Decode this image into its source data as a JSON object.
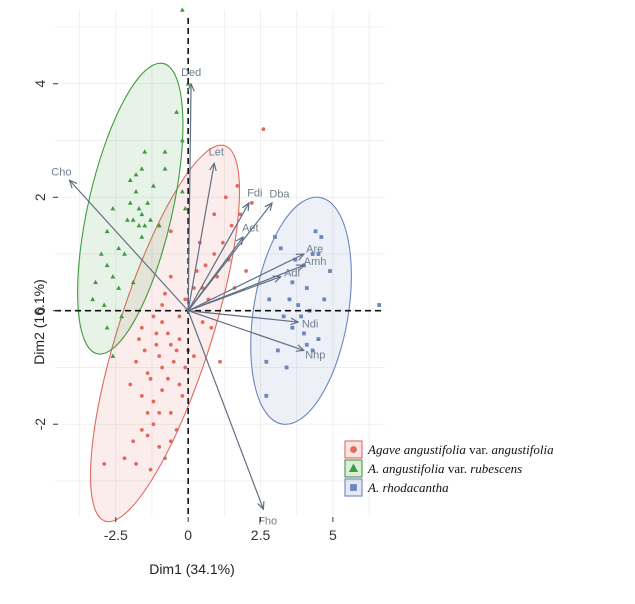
{
  "chart_data": {
    "type": "scatter",
    "subtype": "pca-biplot",
    "title": "",
    "xlabel": "Dim1 (34.1%)",
    "ylabel": "Dim2 (16.1%)",
    "xlim": [
      -4.6,
      6.8
    ],
    "ylim": [
      -3.6,
      5.3
    ],
    "x_ticks": [
      -2.5,
      0,
      2.5,
      5
    ],
    "x_tick_labels": [
      "-2.5",
      "0",
      "2.5",
      "5"
    ],
    "y_ticks": [
      -2,
      0,
      2,
      4
    ],
    "y_tick_labels": [
      "-2",
      "0",
      "2",
      "4"
    ],
    "grid": true,
    "legend_position": "bottom-right",
    "series": [
      {
        "legend_parts": [
          {
            "text": "Agave angustifolia",
            "italic": true
          },
          {
            "text": " var. ",
            "italic": false
          },
          {
            "text": "angustifolia",
            "italic": true
          }
        ],
        "marker": "circle",
        "color": "#e2695f",
        "ellipse": {
          "cx": -0.8,
          "cy": -0.4,
          "angle": 58,
          "a": 3.9,
          "b": 1.2
        },
        "points": [
          [
            -0.6,
            1.4
          ],
          [
            -0.8,
            0.3
          ],
          [
            -0.9,
            0.1
          ],
          [
            -1.6,
            -0.3
          ],
          [
            -1.7,
            -0.5
          ],
          [
            -1.1,
            -0.6
          ],
          [
            -0.6,
            -0.6
          ],
          [
            -0.4,
            -0.7
          ],
          [
            -1.0,
            -0.8
          ],
          [
            -0.9,
            -1.0
          ],
          [
            -1.4,
            -1.1
          ],
          [
            -1.3,
            -1.2
          ],
          [
            -0.7,
            -1.2
          ],
          [
            -0.3,
            -1.3
          ],
          [
            -0.9,
            -1.4
          ],
          [
            -1.6,
            -1.5
          ],
          [
            -1.4,
            -1.8
          ],
          [
            -0.6,
            -1.8
          ],
          [
            -1.2,
            -2.0
          ],
          [
            -1.4,
            -2.2
          ],
          [
            -1.9,
            -2.3
          ],
          [
            -1.0,
            -2.4
          ],
          [
            -0.8,
            -2.6
          ],
          [
            -1.8,
            -2.7
          ],
          [
            -2.2,
            -2.6
          ],
          [
            -1.3,
            -2.8
          ],
          [
            -2.9,
            -2.7
          ],
          [
            -0.9,
            -0.2
          ],
          [
            -0.7,
            -0.4
          ],
          [
            -1.1,
            -0.4
          ],
          [
            -0.5,
            -0.9
          ],
          [
            -0.1,
            -1.0
          ],
          [
            -0.3,
            -0.5
          ],
          [
            0.0,
            -0.7
          ],
          [
            -0.2,
            -1.5
          ],
          [
            -1.8,
            -0.9
          ],
          [
            -2.0,
            -1.3
          ],
          [
            -0.4,
            -2.1
          ],
          [
            -1.5,
            -0.7
          ],
          [
            -1.2,
            -1.6
          ],
          [
            0.2,
            -0.8
          ],
          [
            0.3,
            0.7
          ],
          [
            0.5,
            0.4
          ],
          [
            0.6,
            0.8
          ],
          [
            0.9,
            1.0
          ],
          [
            1.2,
            1.2
          ],
          [
            1.5,
            1.5
          ],
          [
            1.4,
            0.9
          ],
          [
            1.0,
            0.6
          ],
          [
            0.7,
            0.2
          ],
          [
            1.8,
            1.7
          ],
          [
            2.0,
            0.7
          ],
          [
            0.4,
            1.2
          ],
          [
            0.9,
            1.7
          ],
          [
            1.3,
            2.0
          ],
          [
            1.7,
            2.2
          ],
          [
            1.6,
            0.4
          ],
          [
            0.8,
            -0.3
          ],
          [
            1.1,
            -0.9
          ],
          [
            0.5,
            -0.2
          ],
          [
            2.2,
            1.9
          ],
          [
            2.6,
            3.2
          ],
          [
            -0.3,
            -0.1
          ],
          [
            -0.1,
            0.2
          ],
          [
            0.2,
            0.4
          ],
          [
            -0.6,
            0.6
          ],
          [
            -1.0,
            -1.8
          ],
          [
            -0.6,
            -2.3
          ],
          [
            -1.6,
            -2.1
          ],
          [
            -1.2,
            -0.1
          ]
        ]
      },
      {
        "legend_parts": [
          {
            "text": "A. angustifolia",
            "italic": true
          },
          {
            "text": " var. ",
            "italic": false
          },
          {
            "text": "rubescens",
            "italic": true
          }
        ],
        "marker": "triangle",
        "color": "#3f9b3f",
        "ellipse": {
          "cx": -2.0,
          "cy": 1.8,
          "angle": 66,
          "a": 2.8,
          "b": 1.2
        },
        "points": [
          [
            -0.2,
            5.3
          ],
          [
            0.0,
            4.0
          ],
          [
            -0.2,
            3.0
          ],
          [
            -0.4,
            3.5
          ],
          [
            -0.8,
            2.8
          ],
          [
            -0.8,
            2.5
          ],
          [
            -1.5,
            2.8
          ],
          [
            -1.6,
            2.5
          ],
          [
            -1.8,
            2.1
          ],
          [
            -2.0,
            1.9
          ],
          [
            -1.8,
            2.4
          ],
          [
            -1.6,
            1.7
          ],
          [
            -1.9,
            1.6
          ],
          [
            -1.5,
            1.5
          ],
          [
            -1.3,
            1.6
          ],
          [
            -2.1,
            1.6
          ],
          [
            -1.7,
            1.8
          ],
          [
            -2.6,
            1.8
          ],
          [
            -2.8,
            1.4
          ],
          [
            -2.4,
            1.1
          ],
          [
            -3.0,
            1.0
          ],
          [
            -2.8,
            0.8
          ],
          [
            -2.6,
            0.6
          ],
          [
            -2.4,
            0.4
          ],
          [
            -3.2,
            0.5
          ],
          [
            -3.3,
            0.2
          ],
          [
            -2.9,
            0.1
          ],
          [
            -2.3,
            -0.1
          ],
          [
            -2.8,
            -0.3
          ],
          [
            -2.6,
            -0.8
          ],
          [
            -1.4,
            1.9
          ],
          [
            -1.0,
            1.5
          ],
          [
            -1.2,
            2.2
          ],
          [
            -0.2,
            2.1
          ],
          [
            -0.1,
            1.8
          ],
          [
            -1.6,
            1.3
          ],
          [
            -1.7,
            1.5
          ],
          [
            -2.2,
            1.0
          ],
          [
            -2.0,
            2.3
          ],
          [
            -1.9,
            0.5
          ]
        ]
      },
      {
        "legend_parts": [
          {
            "text": "A. rhodacantha",
            "italic": true
          }
        ],
        "marker": "square",
        "color": "#6c86c0",
        "ellipse": {
          "cx": 3.9,
          "cy": 0.0,
          "angle": 72,
          "a": 2.1,
          "b": 1.45
        },
        "points": [
          [
            4.6,
            1.3
          ],
          [
            4.3,
            1.0
          ],
          [
            4.5,
            1.0
          ],
          [
            3.7,
            0.9
          ],
          [
            3.2,
            1.1
          ],
          [
            4.0,
            0.8
          ],
          [
            3.6,
            0.5
          ],
          [
            4.1,
            0.4
          ],
          [
            3.8,
            0.1
          ],
          [
            4.2,
            0.0
          ],
          [
            3.3,
            -0.1
          ],
          [
            3.6,
            -0.3
          ],
          [
            4.0,
            -0.4
          ],
          [
            4.5,
            -0.5
          ],
          [
            4.3,
            -0.7
          ],
          [
            2.7,
            -0.9
          ],
          [
            3.4,
            -1.0
          ],
          [
            2.7,
            -1.5
          ],
          [
            3.1,
            -0.7
          ],
          [
            4.1,
            -0.6
          ],
          [
            4.9,
            0.7
          ],
          [
            3.9,
            -0.1
          ],
          [
            4.7,
            0.2
          ],
          [
            6.6,
            0.1
          ],
          [
            3.5,
            0.2
          ],
          [
            2.8,
            0.2
          ],
          [
            4.4,
            1.4
          ],
          [
            3.0,
            1.3
          ]
        ]
      }
    ],
    "loadings": [
      {
        "name": "Cho",
        "x": -4.1,
        "y": 2.3
      },
      {
        "name": "Ded",
        "x": 0.1,
        "y": 4.0
      },
      {
        "name": "Let",
        "x": 0.9,
        "y": 2.6
      },
      {
        "name": "Fdi",
        "x": 2.1,
        "y": 1.9
      },
      {
        "name": "Dba",
        "x": 2.9,
        "y": 1.9
      },
      {
        "name": "Aet",
        "x": 1.9,
        "y": 1.3
      },
      {
        "name": "Are",
        "x": 4.0,
        "y": 1.0
      },
      {
        "name": "Amh",
        "x": 4.0,
        "y": 0.8
      },
      {
        "name": "Adi",
        "x": 3.2,
        "y": 0.6
      },
      {
        "name": "Ndi",
        "x": 3.8,
        "y": -0.2
      },
      {
        "name": "Nhp",
        "x": 4.0,
        "y": -0.7
      },
      {
        "name": "Fho",
        "x": 2.6,
        "y": -3.5
      }
    ],
    "reference_lines": {
      "x": 0,
      "y": 0,
      "style": "dashed"
    }
  }
}
